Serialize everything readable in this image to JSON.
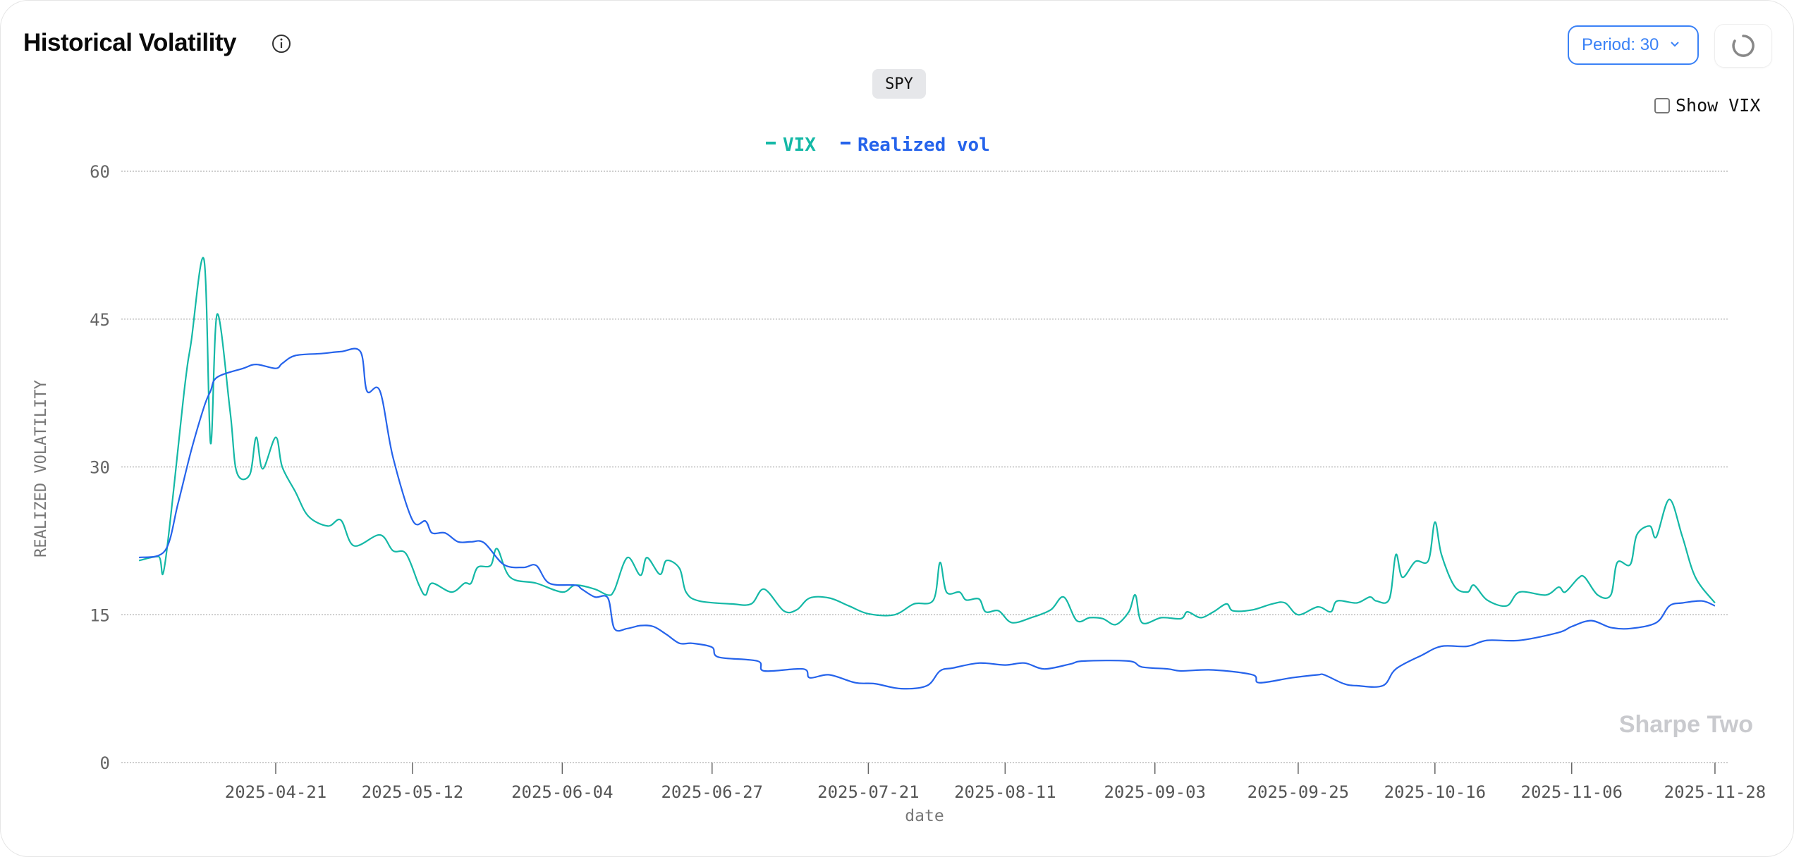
{
  "header": {
    "title": "Historical Volatility",
    "info_icon": "info-icon"
  },
  "ticker": "SPY",
  "controls": {
    "period_label": "Period: 30",
    "refresh_icon": "loading-spinner-icon",
    "show_vix_label": "Show VIX",
    "show_vix_checked": false
  },
  "watermark": "Sharpe Two",
  "colors": {
    "vix": "#14b8a6",
    "realized": "#2563eb"
  },
  "chart_data": {
    "type": "line",
    "xlabel": "date",
    "ylabel": "REALIZED VOLATILITY",
    "ylim": [
      0,
      60
    ],
    "yticks": [
      0,
      15,
      30,
      45,
      60
    ],
    "xticks": [
      "2025-04-21",
      "2025-05-12",
      "2025-06-04",
      "2025-06-27",
      "2025-07-21",
      "2025-08-11",
      "2025-09-03",
      "2025-09-25",
      "2025-10-16",
      "2025-11-06",
      "2025-11-28"
    ],
    "xlim": [
      "2025-03-31",
      "2025-11-28"
    ],
    "grid": "horizontal dotted",
    "legend_placement": "top-center",
    "series": [
      {
        "name": "VIX",
        "color": "#14b8a6",
        "points": [
          [
            "2025-03-31",
            20.5
          ],
          [
            "2025-04-03",
            20.9
          ],
          [
            "2025-04-04",
            20.2
          ],
          [
            "2025-04-07",
            38
          ],
          [
            "2025-04-08",
            42.6
          ],
          [
            "2025-04-10",
            51
          ],
          [
            "2025-04-11",
            32.4
          ],
          [
            "2025-04-12",
            45.5
          ],
          [
            "2025-04-14",
            35.6
          ],
          [
            "2025-04-15",
            29.5
          ],
          [
            "2025-04-17",
            29.2
          ],
          [
            "2025-04-18",
            33
          ],
          [
            "2025-04-19",
            29.8
          ],
          [
            "2025-04-21",
            33
          ],
          [
            "2025-04-22",
            30
          ],
          [
            "2025-04-24",
            27.5
          ],
          [
            "2025-04-26",
            25
          ],
          [
            "2025-04-29",
            24
          ],
          [
            "2025-05-01",
            24.6
          ],
          [
            "2025-05-03",
            22
          ],
          [
            "2025-05-07",
            23.1
          ],
          [
            "2025-05-09",
            21.5
          ],
          [
            "2025-05-11",
            21.2
          ],
          [
            "2025-05-13",
            18
          ],
          [
            "2025-05-14",
            17
          ],
          [
            "2025-05-15",
            18.2
          ],
          [
            "2025-05-18",
            17.3
          ],
          [
            "2025-05-20",
            18.2
          ],
          [
            "2025-05-21",
            18.2
          ],
          [
            "2025-05-22",
            19.8
          ],
          [
            "2025-05-24",
            20
          ],
          [
            "2025-05-25",
            21.7
          ],
          [
            "2025-05-27",
            18.8
          ],
          [
            "2025-05-31",
            18.2
          ],
          [
            "2025-06-04",
            17.3
          ],
          [
            "2025-06-06",
            18
          ],
          [
            "2025-06-09",
            17.6
          ],
          [
            "2025-06-11",
            17
          ],
          [
            "2025-06-12",
            17.5
          ],
          [
            "2025-06-14",
            20.8
          ],
          [
            "2025-06-16",
            19
          ],
          [
            "2025-06-17",
            20.8
          ],
          [
            "2025-06-19",
            19.1
          ],
          [
            "2025-06-20",
            20.5
          ],
          [
            "2025-06-22",
            19.7
          ],
          [
            "2025-06-23",
            17.3
          ],
          [
            "2025-06-25",
            16.4
          ],
          [
            "2025-06-30",
            16.1
          ],
          [
            "2025-07-03",
            16.1
          ],
          [
            "2025-07-05",
            17.6
          ],
          [
            "2025-07-08",
            15.4
          ],
          [
            "2025-07-10",
            15.5
          ],
          [
            "2025-07-12",
            16.7
          ],
          [
            "2025-07-15",
            16.7
          ],
          [
            "2025-07-18",
            15.9
          ],
          [
            "2025-07-21",
            15.1
          ],
          [
            "2025-07-25",
            15
          ],
          [
            "2025-07-28",
            16.1
          ],
          [
            "2025-07-31",
            16.5
          ],
          [
            "2025-08-01",
            20.3
          ],
          [
            "2025-08-02",
            17.3
          ],
          [
            "2025-08-04",
            17.3
          ],
          [
            "2025-08-05",
            16.5
          ],
          [
            "2025-08-07",
            16.6
          ],
          [
            "2025-08-08",
            15.3
          ],
          [
            "2025-08-10",
            15.4
          ],
          [
            "2025-08-12",
            14.2
          ],
          [
            "2025-08-15",
            14.7
          ],
          [
            "2025-08-18",
            15.5
          ],
          [
            "2025-08-20",
            16.8
          ],
          [
            "2025-08-22",
            14.4
          ],
          [
            "2025-08-24",
            14.7
          ],
          [
            "2025-08-26",
            14.6
          ],
          [
            "2025-08-28",
            14
          ],
          [
            "2025-08-30",
            15.3
          ],
          [
            "2025-08-31",
            17
          ],
          [
            "2025-09-01",
            14.2
          ],
          [
            "2025-09-04",
            14.7
          ],
          [
            "2025-09-07",
            14.6
          ],
          [
            "2025-09-08",
            15.3
          ],
          [
            "2025-09-10",
            14.7
          ],
          [
            "2025-09-12",
            15.3
          ],
          [
            "2025-09-14",
            16.1
          ],
          [
            "2025-09-15",
            15.4
          ],
          [
            "2025-09-18",
            15.5
          ],
          [
            "2025-09-21",
            16.1
          ],
          [
            "2025-09-23",
            16.2
          ],
          [
            "2025-09-25",
            15
          ],
          [
            "2025-09-28",
            15.8
          ],
          [
            "2025-09-30",
            15.3
          ],
          [
            "2025-10-01",
            16.4
          ],
          [
            "2025-10-04",
            16.2
          ],
          [
            "2025-10-06",
            16.8
          ],
          [
            "2025-10-07",
            16.4
          ],
          [
            "2025-10-09",
            16.6
          ],
          [
            "2025-10-10",
            21.1
          ],
          [
            "2025-10-11",
            18.8
          ],
          [
            "2025-10-13",
            20.4
          ],
          [
            "2025-10-15",
            20.5
          ],
          [
            "2025-10-16",
            24.4
          ],
          [
            "2025-10-17",
            21.1
          ],
          [
            "2025-10-19",
            17.9
          ],
          [
            "2025-10-21",
            17.3
          ],
          [
            "2025-10-22",
            18
          ],
          [
            "2025-10-24",
            16.5
          ],
          [
            "2025-10-27",
            15.9
          ],
          [
            "2025-10-29",
            17.3
          ],
          [
            "2025-11-02",
            17
          ],
          [
            "2025-11-04",
            17.8
          ],
          [
            "2025-11-05",
            17.3
          ],
          [
            "2025-11-07",
            18.7
          ],
          [
            "2025-11-08",
            18.8
          ],
          [
            "2025-11-10",
            17
          ],
          [
            "2025-11-12",
            17
          ],
          [
            "2025-11-13",
            20.3
          ],
          [
            "2025-11-15",
            20.1
          ],
          [
            "2025-11-16",
            23.1
          ],
          [
            "2025-11-18",
            24
          ],
          [
            "2025-11-19",
            22.9
          ],
          [
            "2025-11-21",
            26.7
          ],
          [
            "2025-11-23",
            22.9
          ],
          [
            "2025-11-25",
            18.8
          ],
          [
            "2025-11-28",
            16.2
          ]
        ]
      },
      {
        "name": "Realized vol",
        "color": "#2563eb",
        "points": [
          [
            "2025-03-31",
            20.8
          ],
          [
            "2025-04-04",
            21.5
          ],
          [
            "2025-04-06",
            26.3
          ],
          [
            "2025-04-08",
            31.6
          ],
          [
            "2025-04-10",
            36.1
          ],
          [
            "2025-04-11",
            37.7
          ],
          [
            "2025-04-12",
            39.1
          ],
          [
            "2025-04-16",
            40
          ],
          [
            "2025-04-18",
            40.4
          ],
          [
            "2025-04-21",
            40
          ],
          [
            "2025-04-22",
            40.5
          ],
          [
            "2025-04-24",
            41.3
          ],
          [
            "2025-04-28",
            41.5
          ],
          [
            "2025-05-01",
            41.7
          ],
          [
            "2025-05-04",
            41.7
          ],
          [
            "2025-05-05",
            37.7
          ],
          [
            "2025-05-07",
            37.7
          ],
          [
            "2025-05-09",
            31
          ],
          [
            "2025-05-12",
            24.6
          ],
          [
            "2025-05-14",
            24.5
          ],
          [
            "2025-05-15",
            23.3
          ],
          [
            "2025-05-17",
            23.3
          ],
          [
            "2025-05-19",
            22.4
          ],
          [
            "2025-05-21",
            22.4
          ],
          [
            "2025-05-23",
            22.3
          ],
          [
            "2025-05-26",
            20.1
          ],
          [
            "2025-05-29",
            19.8
          ],
          [
            "2025-05-31",
            20
          ],
          [
            "2025-06-02",
            18.2
          ],
          [
            "2025-06-06",
            18
          ],
          [
            "2025-06-07",
            17.6
          ],
          [
            "2025-06-09",
            16.8
          ],
          [
            "2025-06-11",
            16.7
          ],
          [
            "2025-06-12",
            13.6
          ],
          [
            "2025-06-14",
            13.6
          ],
          [
            "2025-06-16",
            13.9
          ],
          [
            "2025-06-18",
            13.8
          ],
          [
            "2025-06-20",
            13
          ],
          [
            "2025-06-22",
            12.1
          ],
          [
            "2025-06-24",
            12.1
          ],
          [
            "2025-06-27",
            11.7
          ],
          [
            "2025-06-28",
            10.7
          ],
          [
            "2025-07-04",
            10.3
          ],
          [
            "2025-07-05",
            9.3
          ],
          [
            "2025-07-11",
            9.5
          ],
          [
            "2025-07-12",
            8.6
          ],
          [
            "2025-07-15",
            8.9
          ],
          [
            "2025-07-19",
            8.1
          ],
          [
            "2025-07-22",
            8
          ],
          [
            "2025-07-26",
            7.5
          ],
          [
            "2025-07-30",
            7.8
          ],
          [
            "2025-08-01",
            9.3
          ],
          [
            "2025-08-03",
            9.6
          ],
          [
            "2025-08-07",
            10.1
          ],
          [
            "2025-08-11",
            9.9
          ],
          [
            "2025-08-14",
            10.1
          ],
          [
            "2025-08-17",
            9.5
          ],
          [
            "2025-08-21",
            10
          ],
          [
            "2025-08-23",
            10.3
          ],
          [
            "2025-08-30",
            10.3
          ],
          [
            "2025-09-01",
            9.7
          ],
          [
            "2025-09-05",
            9.5
          ],
          [
            "2025-09-07",
            9.3
          ],
          [
            "2025-09-12",
            9.4
          ],
          [
            "2025-09-18",
            8.9
          ],
          [
            "2025-09-19",
            8.1
          ],
          [
            "2025-09-24",
            8.6
          ],
          [
            "2025-09-28",
            8.9
          ],
          [
            "2025-09-29",
            8.9
          ],
          [
            "2025-10-02",
            8
          ],
          [
            "2025-10-04",
            7.8
          ],
          [
            "2025-10-08",
            7.8
          ],
          [
            "2025-10-10",
            9.5
          ],
          [
            "2025-10-14",
            10.9
          ],
          [
            "2025-10-17",
            11.8
          ],
          [
            "2025-10-21",
            11.8
          ],
          [
            "2025-10-24",
            12.4
          ],
          [
            "2025-10-29",
            12.4
          ],
          [
            "2025-11-04",
            13.2
          ],
          [
            "2025-11-06",
            13.8
          ],
          [
            "2025-11-09",
            14.4
          ],
          [
            "2025-11-12",
            13.7
          ],
          [
            "2025-11-15",
            13.6
          ],
          [
            "2025-11-19",
            14.2
          ],
          [
            "2025-11-21",
            15.9
          ],
          [
            "2025-11-23",
            16.2
          ],
          [
            "2025-11-26",
            16.4
          ],
          [
            "2025-11-28",
            15.9
          ]
        ]
      }
    ]
  }
}
